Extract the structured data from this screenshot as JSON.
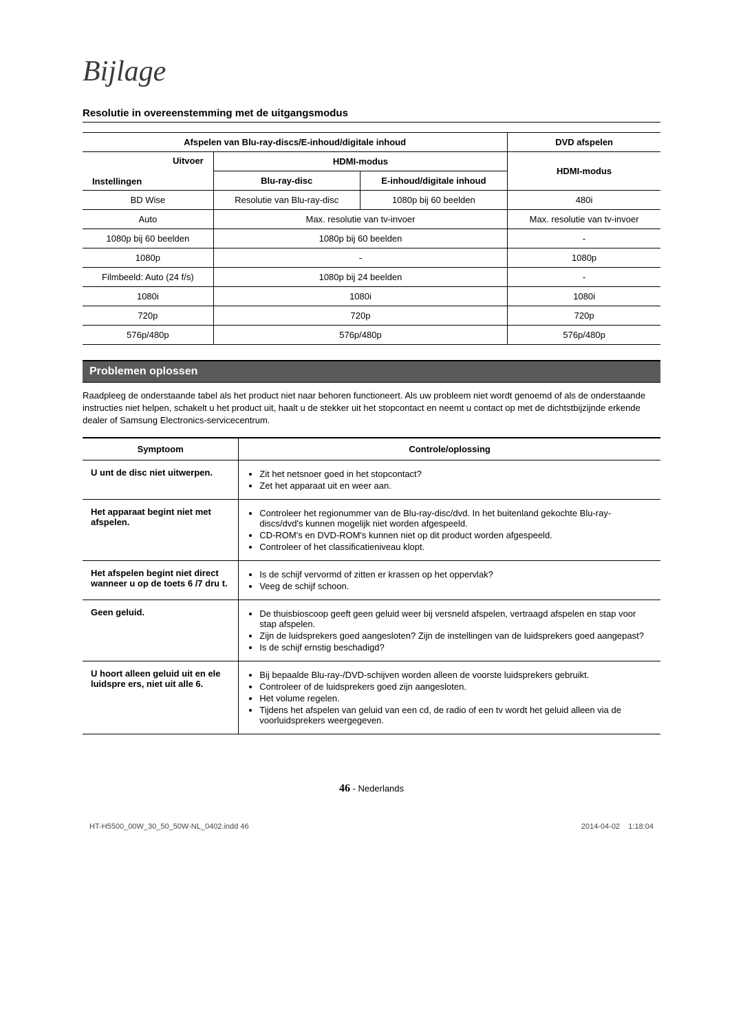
{
  "title": "Bijlage",
  "subtitle": "Resolutie in overeenstemming met de uitgangsmodus",
  "res_table": {
    "head": {
      "blu_col": "Afspelen van Blu-ray-discs/E-inhoud/digitale inhoud",
      "dvd_col": "DVD afspelen",
      "output": "Uitvoer",
      "settings": "Instellingen",
      "hdmi": "HDMI-modus",
      "bluray": "Blu-ray-disc",
      "einhoud": "E-inhoud/digitale inhoud",
      "hdmi2": "HDMI-modus"
    },
    "rows": [
      {
        "label": "BD Wise",
        "c1": "Resolutie van Blu-ray-disc",
        "c2": "1080p bij 60 beelden",
        "c3": "480i"
      },
      {
        "label": "Auto",
        "c12": "Max. resolutie van tv-invoer",
        "c3": "Max. resolutie van tv-invoer"
      },
      {
        "label": "1080p bij 60 beelden",
        "c12": "1080p bij 60 beelden",
        "c3": "-"
      },
      {
        "label": "1080p",
        "c12": "-",
        "c3": "1080p"
      },
      {
        "label": "Filmbeeld: Auto (24 f/s)",
        "c12": "1080p bij 24 beelden",
        "c3": "-"
      },
      {
        "label": "1080i",
        "c12": "1080i",
        "c3": "1080i"
      },
      {
        "label": "720p",
        "c12": "720p",
        "c3": "720p"
      },
      {
        "label": "576p/480p",
        "c12": "576p/480p",
        "c3": "576p/480p"
      }
    ]
  },
  "troubleshoot": {
    "heading": "Problemen oplossen",
    "intro": "Raadpleeg de onderstaande tabel als het product niet naar behoren functioneert. Als uw probleem niet wordt genoemd of als de onderstaande instructies niet helpen, schakelt u het product uit, haalt u de stekker uit het stopcontact en neemt u contact op met de dichtstbijzijnde erkende dealer of Samsung Electronics-servicecentrum.",
    "col1": "Symptoom",
    "col2": "Controle/oplossing",
    "rows": [
      {
        "symptom": "U  unt de disc niet uitwerpen.",
        "sol": [
          "Zit het netsnoer goed in het stopcontact?",
          "Zet het apparaat uit en weer aan."
        ]
      },
      {
        "symptom": "Het apparaat begint niet met afspelen.",
        "sol": [
          "Controleer het regionummer van de Blu-ray-disc/dvd. In het buitenland gekochte Blu-ray-discs/dvd's kunnen mogelijk niet worden afgespeeld.",
          "CD-ROM's en DVD-ROM's kunnen niet op dit product worden afgespeeld.",
          "Controleer of het classificatieniveau klopt."
        ]
      },
      {
        "symptom": "Het afspelen begint niet direct wanneer u op de toets 6  /7   dru t.",
        "sol": [
          "Is de schijf vervormd of zitten er krassen op het oppervlak?",
          "Veeg de schijf schoon."
        ]
      },
      {
        "symptom": "Geen geluid.",
        "sol": [
          "De thuisbioscoop geeft geen geluid weer bij versneld afspelen, vertraagd afspelen en stap voor stap afspelen.",
          "Zijn de luidsprekers goed aangesloten? Zijn de instellingen van de luidsprekers goed aangepast?",
          "Is de schijf ernstig beschadigd?"
        ]
      },
      {
        "symptom": "U hoort alleen geluid uit en ele luidspre ers, niet uit alle 6.",
        "sol": [
          "Bij bepaalde Blu-ray-/DVD-schijven worden alleen de voorste luidsprekers gebruikt.",
          "Controleer of de luidsprekers goed zijn aangesloten.",
          "Het volume regelen.",
          "Tijdens het afspelen van geluid van een cd, de radio of een tv wordt het geluid alleen via de voorluidsprekers weergegeven."
        ]
      }
    ]
  },
  "footer": {
    "pagenum": "46",
    "lang": "Nederlands",
    "file": "HT-H5500_00W_30_50_50W-NL_0402.indd   46",
    "date": "2014-04-02",
    "time": "1:18:04"
  }
}
